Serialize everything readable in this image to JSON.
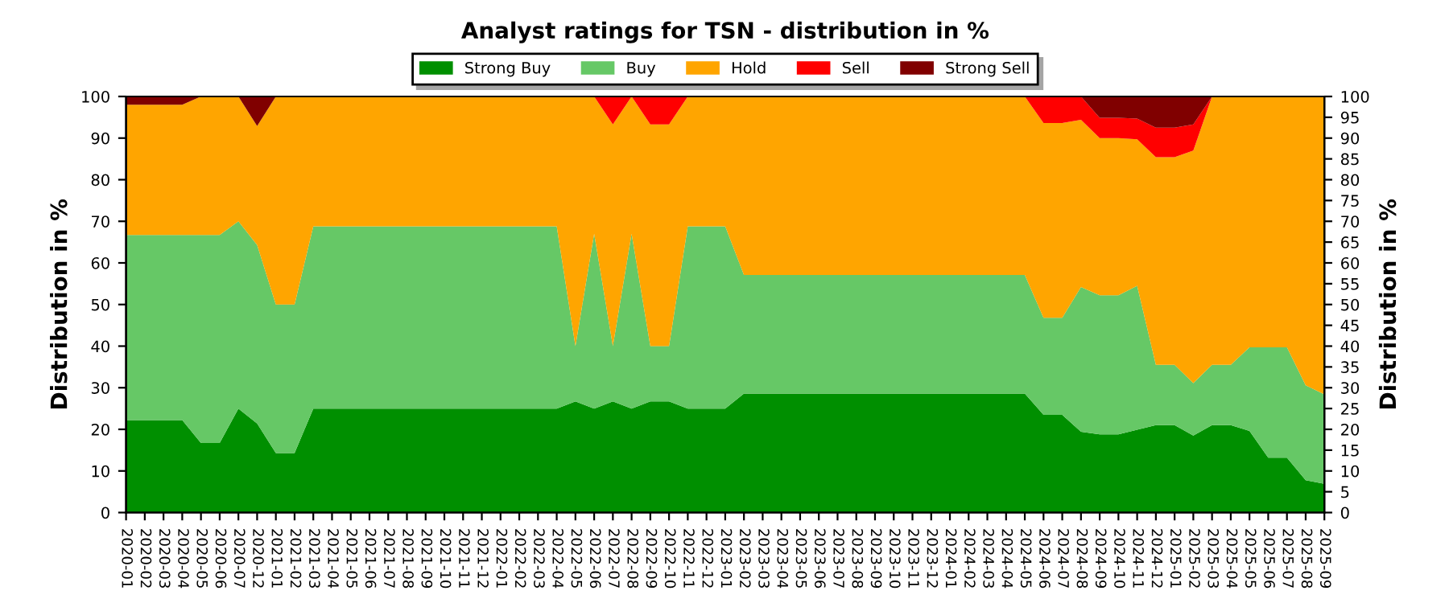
{
  "chart_data": {
    "type": "area",
    "stacked": true,
    "title": "Analyst ratings for TSN - distribution in %",
    "ylabel": "Distribution in %",
    "y2label": "Distribution in %",
    "categories": [
      "2020-01",
      "2020-02",
      "2020-03",
      "2020-04",
      "2020-05",
      "2020-06",
      "2020-07",
      "2020-12",
      "2021-01",
      "2021-02",
      "2021-03",
      "2021-04",
      "2021-05",
      "2021-06",
      "2021-07",
      "2021-08",
      "2021-09",
      "2021-10",
      "2021-11",
      "2021-12",
      "2022-01",
      "2022-02",
      "2022-03",
      "2022-04",
      "2022-05",
      "2022-06",
      "2022-07",
      "2022-08",
      "2022-09",
      "2022-10",
      "2022-11",
      "2022-12",
      "2023-01",
      "2023-02",
      "2023-03",
      "2023-04",
      "2023-05",
      "2023-06",
      "2023-07",
      "2023-08",
      "2023-09",
      "2023-10",
      "2023-11",
      "2023-12",
      "2024-01",
      "2024-02",
      "2024-03",
      "2024-04",
      "2024-05",
      "2024-06",
      "2024-07",
      "2024-08",
      "2024-09",
      "2024-10",
      "2024-11",
      "2024-12",
      "2025-01",
      "2025-02",
      "2025-03",
      "2025-04",
      "2025-05",
      "2025-06",
      "2025-07",
      "2025-08",
      "2025-09"
    ],
    "series": [
      {
        "name": "Strong Buy",
        "color": "#008f00",
        "values": [
          22.2,
          22.2,
          22.2,
          22.2,
          16.7,
          16.7,
          25,
          21.4,
          14.3,
          14.3,
          25,
          25,
          25,
          25,
          25,
          25,
          25,
          25,
          25,
          25,
          25,
          25,
          25,
          25,
          26.7,
          25,
          26.7,
          25,
          26.7,
          26.7,
          25,
          25,
          25,
          28.6,
          28.6,
          28.6,
          28.6,
          28.6,
          28.6,
          28.6,
          28.6,
          28.6,
          28.6,
          28.6,
          28.6,
          28.6,
          28.6,
          28.6,
          28.6,
          23.5,
          23.5,
          19.4,
          18.8,
          18.8,
          19.9,
          21.0,
          21.0,
          18.5,
          21.0,
          21.0,
          19.6,
          13.2,
          13.2,
          7.8,
          6.9
        ]
      },
      {
        "name": "Buy",
        "color": "#66c866",
        "values": [
          44.5,
          44.5,
          44.5,
          44.5,
          50,
          50,
          45,
          42.9,
          35.7,
          35.7,
          43.8,
          43.8,
          43.8,
          43.8,
          43.8,
          43.8,
          43.8,
          43.8,
          43.8,
          43.8,
          43.8,
          43.8,
          43.8,
          43.8,
          13.3,
          42,
          13.3,
          42,
          13.3,
          13.3,
          43.8,
          43.8,
          43.8,
          28.5,
          28.5,
          28.5,
          28.5,
          28.5,
          28.5,
          28.5,
          28.5,
          28.5,
          28.5,
          28.5,
          28.5,
          28.5,
          28.5,
          28.5,
          28.5,
          23.3,
          23.3,
          34.8,
          33.4,
          33.4,
          34.6,
          14.5,
          14.5,
          12.6,
          14.5,
          14.5,
          20.1,
          26.5,
          26.5,
          22.8,
          21.5
        ]
      },
      {
        "name": "Hold",
        "color": "#ffa500",
        "values": [
          31.3,
          31.3,
          31.3,
          31.3,
          33.3,
          33.3,
          30,
          28.6,
          50,
          50,
          31.2,
          31.2,
          31.2,
          31.2,
          31.2,
          31.2,
          31.2,
          31.2,
          31.2,
          31.2,
          31.2,
          31.2,
          31.2,
          31.2,
          60,
          33,
          53.3,
          33,
          53.3,
          53.3,
          31.2,
          31.2,
          31.2,
          42.9,
          42.9,
          42.9,
          42.9,
          42.9,
          42.9,
          42.9,
          42.9,
          42.9,
          42.9,
          42.9,
          42.9,
          42.9,
          42.9,
          42.9,
          42.9,
          46.8,
          46.8,
          40.2,
          37.8,
          37.8,
          35.2,
          49.9,
          49.9,
          55.9,
          64.5,
          64.5,
          60.3,
          60.3,
          60.3,
          69.4,
          71.6
        ]
      },
      {
        "name": "Sell",
        "color": "#ff0000",
        "values": [
          0,
          0,
          0,
          0,
          0,
          0,
          0,
          0,
          0,
          0,
          0,
          0,
          0,
          0,
          0,
          0,
          0,
          0,
          0,
          0,
          0,
          0,
          0,
          0,
          0,
          0,
          6.7,
          0,
          6.7,
          6.7,
          0,
          0,
          0,
          0,
          0,
          0,
          0,
          0,
          0,
          0,
          0,
          0,
          0,
          0,
          0,
          0,
          0,
          0,
          0,
          6.4,
          6.4,
          5.6,
          4.9,
          4.9,
          5.0,
          7.1,
          7.1,
          6.3,
          0,
          0,
          0,
          0,
          0,
          0,
          0
        ]
      },
      {
        "name": "Strong Sell",
        "color": "#800000",
        "values": [
          2,
          2,
          2,
          2,
          0,
          0,
          0,
          7.1,
          0,
          0,
          0,
          0,
          0,
          0,
          0,
          0,
          0,
          0,
          0,
          0,
          0,
          0,
          0,
          0,
          0,
          0,
          0,
          0,
          0,
          0,
          0,
          0,
          0,
          0,
          0,
          0,
          0,
          0,
          0,
          0,
          0,
          0,
          0,
          0,
          0,
          0,
          0,
          0,
          0,
          0,
          0,
          0,
          5.1,
          5.1,
          5.3,
          7.5,
          7.5,
          6.7,
          0,
          0,
          0,
          0,
          0,
          0,
          0
        ]
      }
    ],
    "ylim": [
      0,
      100
    ],
    "yticks": [
      0,
      10,
      20,
      30,
      40,
      50,
      60,
      70,
      80,
      90,
      100
    ],
    "y2lim": [
      0,
      100
    ],
    "y2ticks": [
      0,
      5,
      10,
      15,
      20,
      25,
      30,
      35,
      40,
      45,
      50,
      55,
      60,
      65,
      70,
      75,
      80,
      85,
      90,
      95,
      100
    ],
    "grid": "y",
    "legend": "top"
  }
}
